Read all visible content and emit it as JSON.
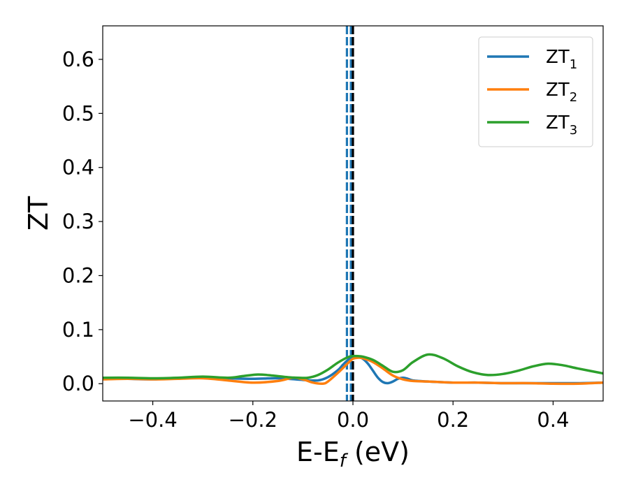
{
  "chart_data": {
    "type": "line",
    "title": "",
    "xlabel": {
      "main": "E-E",
      "sub": "f",
      "unit": " (eV)"
    },
    "ylabel": "ZT",
    "xlim": [
      -0.5,
      0.5
    ],
    "ylim": [
      -0.032,
      0.662
    ],
    "xticks": [
      -0.4,
      -0.2,
      0.0,
      0.2,
      0.4
    ],
    "xtick_labels": [
      "−0.4",
      "−0.2",
      "0.0",
      "0.2",
      "0.4"
    ],
    "yticks": [
      0.0,
      0.1,
      0.2,
      0.3,
      0.4,
      0.5,
      0.6
    ],
    "ytick_labels": [
      "0.0",
      "0.1",
      "0.2",
      "0.3",
      "0.4",
      "0.5",
      "0.6"
    ],
    "grid": false,
    "legend_position": "top-right",
    "vertical_lines": [
      {
        "x": -0.012,
        "style": "dashed",
        "color": "#1f77b4"
      },
      {
        "x": -0.004,
        "style": "dashed",
        "color": "#1f77b4"
      },
      {
        "x": 0.0,
        "style": "dashed",
        "color": "#000000"
      }
    ],
    "series": [
      {
        "name": "ZT",
        "sub": "1",
        "color": "#1f77b4",
        "x": [
          -0.5,
          -0.45,
          -0.4,
          -0.35,
          -0.3,
          -0.25,
          -0.2,
          -0.15,
          -0.1,
          -0.07,
          -0.05,
          -0.03,
          -0.02,
          -0.01,
          0.0,
          0.01,
          0.02,
          0.03,
          0.04,
          0.05,
          0.06,
          0.07,
          0.08,
          0.09,
          0.1,
          0.11,
          0.12,
          0.15,
          0.2,
          0.25,
          0.3,
          0.35,
          0.4,
          0.45,
          0.5
        ],
        "y": [
          0.01,
          0.009,
          0.008,
          0.01,
          0.012,
          0.01,
          0.009,
          0.01,
          0.007,
          0.006,
          0.012,
          0.025,
          0.035,
          0.044,
          0.05,
          0.05,
          0.046,
          0.037,
          0.024,
          0.011,
          0.003,
          0.001,
          0.004,
          0.009,
          0.011,
          0.009,
          0.006,
          0.004,
          0.002,
          0.002,
          0.001,
          0.001,
          0.001,
          0.001,
          0.002
        ]
      },
      {
        "name": "ZT",
        "sub": "2",
        "color": "#ff7f0e",
        "x": [
          -0.5,
          -0.45,
          -0.4,
          -0.35,
          -0.3,
          -0.25,
          -0.2,
          -0.15,
          -0.12,
          -0.1,
          -0.08,
          -0.06,
          -0.05,
          -0.03,
          -0.01,
          0.0,
          0.01,
          0.02,
          0.04,
          0.06,
          0.08,
          0.1,
          0.12,
          0.15,
          0.2,
          0.25,
          0.3,
          0.35,
          0.4,
          0.45,
          0.5
        ],
        "y": [
          0.008,
          0.009,
          0.008,
          0.009,
          0.01,
          0.006,
          0.002,
          0.005,
          0.011,
          0.008,
          0.002,
          0.0,
          0.004,
          0.02,
          0.038,
          0.046,
          0.048,
          0.047,
          0.04,
          0.028,
          0.015,
          0.008,
          0.005,
          0.004,
          0.002,
          0.002,
          0.001,
          0.001,
          0.0,
          0.0,
          0.002
        ]
      },
      {
        "name": "ZT",
        "sub": "3",
        "color": "#2ca02c",
        "x": [
          -0.5,
          -0.45,
          -0.4,
          -0.35,
          -0.3,
          -0.25,
          -0.22,
          -0.19,
          -0.16,
          -0.13,
          -0.11,
          -0.09,
          -0.07,
          -0.05,
          -0.03,
          -0.01,
          0.0,
          0.01,
          0.02,
          0.04,
          0.06,
          0.08,
          0.1,
          0.12,
          0.15,
          0.18,
          0.21,
          0.24,
          0.27,
          0.3,
          0.33,
          0.36,
          0.39,
          0.42,
          0.45,
          0.5
        ],
        "y": [
          0.011,
          0.011,
          0.01,
          0.011,
          0.013,
          0.011,
          0.014,
          0.017,
          0.015,
          0.012,
          0.011,
          0.011,
          0.016,
          0.026,
          0.039,
          0.049,
          0.051,
          0.051,
          0.05,
          0.044,
          0.033,
          0.022,
          0.025,
          0.04,
          0.054,
          0.047,
          0.032,
          0.021,
          0.016,
          0.018,
          0.024,
          0.032,
          0.037,
          0.034,
          0.028,
          0.019
        ]
      }
    ]
  }
}
